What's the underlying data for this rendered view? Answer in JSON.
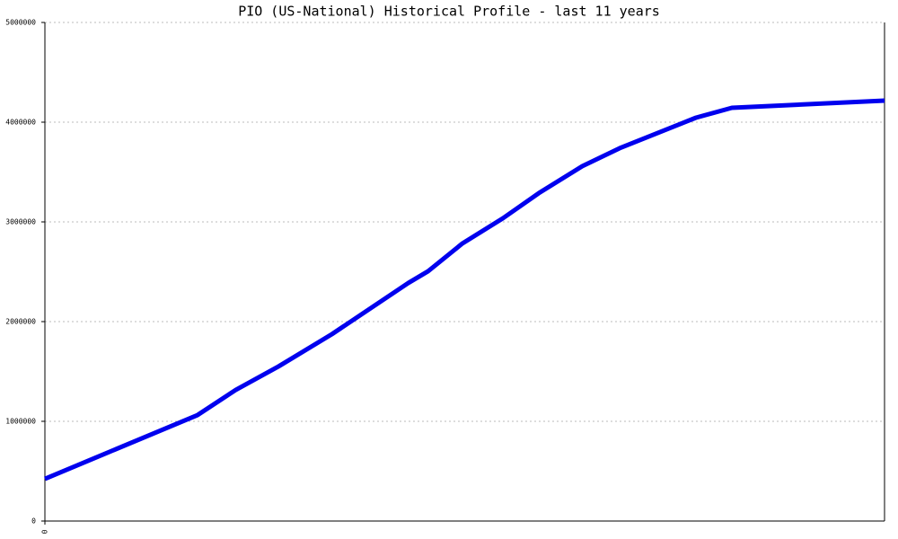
{
  "chart_data": {
    "type": "line",
    "title": "PIO (US-National) Historical Profile - last 11 years",
    "x": [
      0,
      2,
      2.5,
      3.06,
      3.76,
      4.76,
      5.02,
      5.47,
      6,
      6.47,
      7.04,
      7.53,
      8.53,
      9,
      11
    ],
    "series": [
      {
        "color": "#0000ee",
        "values": [
          423000,
          1063000,
          1315000,
          1550000,
          1874000,
          2387000,
          2505000,
          2784000,
          3036000,
          3288000,
          3559000,
          3739000,
          4045000,
          4144000,
          4216000
        ]
      }
    ],
    "xlim": [
      0,
      11
    ],
    "xticks": [
      0
    ],
    "ylim": [
      0,
      5000000
    ],
    "yticks": [
      0,
      1000000,
      2000000,
      3000000,
      4000000,
      5000000
    ],
    "grid": true
  }
}
